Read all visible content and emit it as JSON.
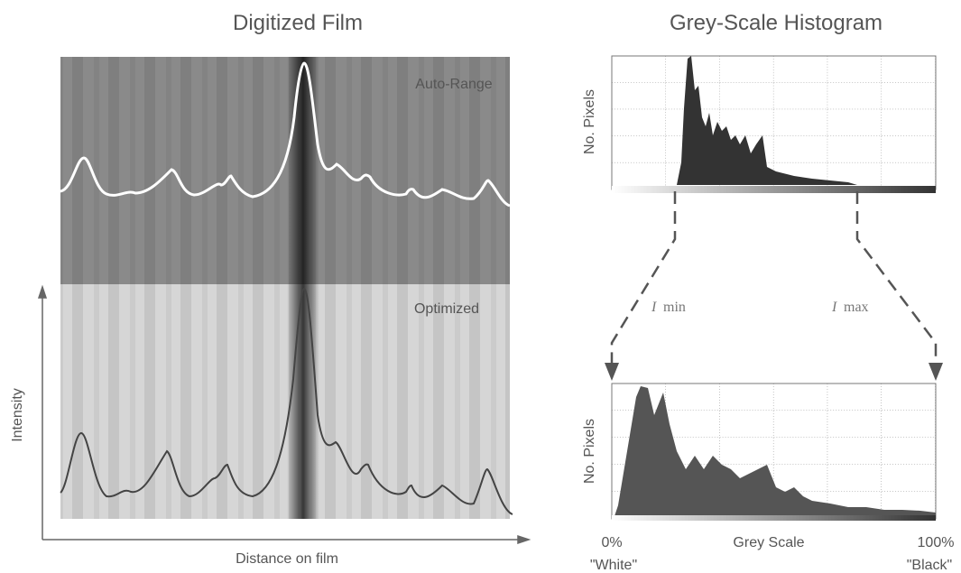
{
  "left_panel": {
    "title": "Digitized Film",
    "labels": [
      "Auto-Range",
      "Optimized"
    ],
    "y_axis": "Intensity",
    "x_axis": "Distance on film"
  },
  "right_panel": {
    "title": "Grey-Scale Histogram",
    "top_histogram": {
      "y_axis": "No. Pixels"
    },
    "bottom_histogram": {
      "y_axis": "No. Pixels",
      "x_axis": "Grey Scale",
      "x_start": "0%",
      "x_end": "100%",
      "start_note": "\"White\"",
      "end_note": "\"Black\""
    },
    "zoom_labels": {
      "min": {
        "symbol": "I",
        "subscript": "min"
      },
      "max": {
        "symbol": "I",
        "subscript": "max"
      }
    }
  }
}
